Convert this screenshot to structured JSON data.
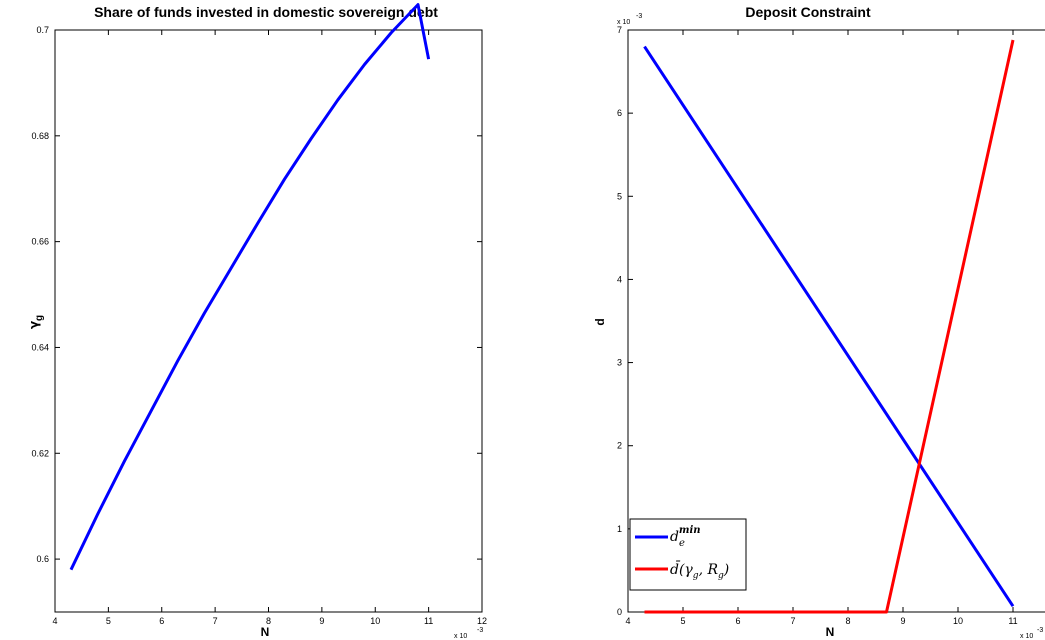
{
  "chart_data": [
    {
      "type": "line",
      "title": "Share of funds invested in domestic sovereign debt",
      "xlabel": "N",
      "ylabel": "γ",
      "ylabel_subscript": "g",
      "x_multiplier_label": "x 10",
      "x_multiplier_exponent": "-3",
      "xlim": [
        4,
        12
      ],
      "ylim": [
        0.59,
        0.7
      ],
      "xticks": [
        "4",
        "5",
        "6",
        "7",
        "8",
        "9",
        "10",
        "11",
        "12"
      ],
      "yticks": [
        "0.6",
        "0.62",
        "0.64",
        "0.66",
        "0.68",
        "0.7"
      ],
      "grid": false,
      "series": [
        {
          "color": "#0000ff",
          "x": [
            4.3,
            4.8,
            5.3,
            5.8,
            6.3,
            6.8,
            7.3,
            7.8,
            8.3,
            8.8,
            9.3,
            9.8,
            10.3,
            10.8,
            11.0
          ],
          "y": [
            0.598,
            0.6085,
            0.6185,
            0.628,
            0.6375,
            0.6465,
            0.655,
            0.6635,
            0.6718,
            0.6795,
            0.6868,
            0.6935,
            0.6995,
            0.7048,
            0.6945
          ]
        }
      ]
    },
    {
      "type": "line",
      "title": "Deposit Constraint",
      "xlabel": "N",
      "ylabel": "d",
      "x_multiplier_label": "x 10",
      "x_multiplier_exponent": "-3",
      "y_multiplier_label": "x 10",
      "y_multiplier_exponent": "-3",
      "xlim": [
        4,
        12
      ],
      "ylim": [
        0,
        7
      ],
      "xticks": [
        "4",
        "5",
        "6",
        "7",
        "8",
        "9",
        "10",
        "11",
        "12"
      ],
      "yticks": [
        "0",
        "1",
        "2",
        "3",
        "4",
        "5",
        "6",
        "7"
      ],
      "grid": false,
      "legend_position": "bottom-left",
      "series": [
        {
          "name": "d_e^min",
          "color": "#0000ff",
          "x": [
            4.3,
            11.0
          ],
          "y": [
            6.8,
            0.07
          ]
        },
        {
          "name": "d̄(γ_g, R_g)",
          "color": "#ff0000",
          "x": [
            4.3,
            8.7,
            11.0
          ],
          "y": [
            0.0,
            0.0,
            6.88
          ]
        }
      ]
    }
  ]
}
